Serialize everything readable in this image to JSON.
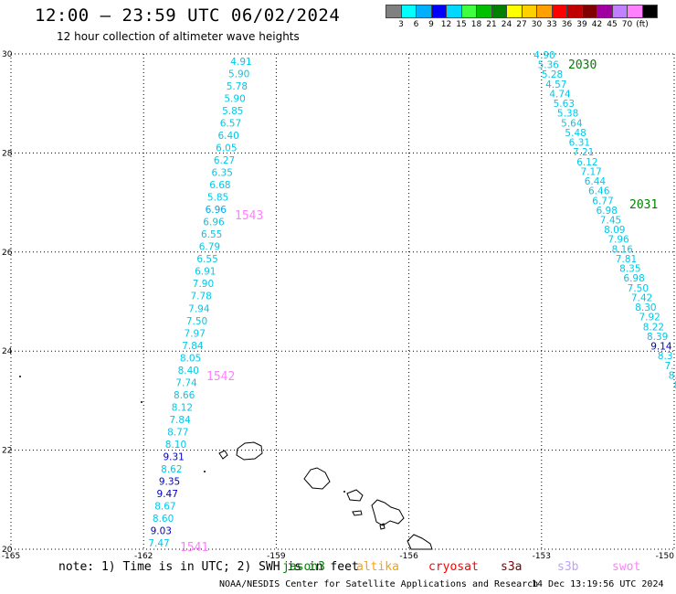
{
  "title": "12:00 — 23:59 UTC 06/02/2024",
  "subtitle": "12 hour collection of altimeter wave heights",
  "colorbar": {
    "colors": [
      "#808080",
      "#00ffff",
      "#00b0ff",
      "#0000ff",
      "#00d8ff",
      "#40ff40",
      "#00c000",
      "#008000",
      "#ffff00",
      "#ffd000",
      "#ffa000",
      "#ff0000",
      "#c00000",
      "#800000",
      "#a000a0",
      "#c080ff",
      "#ff80ff",
      "#000000"
    ],
    "labels": [
      "3",
      "6",
      "9",
      "12",
      "15",
      "18",
      "21",
      "24",
      "27",
      "30",
      "33",
      "36",
      "39",
      "42",
      "45",
      "70",
      "(ft)"
    ]
  },
  "axes": {
    "lon_ticks": [
      "-165",
      "-162",
      "-159",
      "-156",
      "-153",
      "-150"
    ],
    "lat_ticks": [
      "30",
      "28",
      "26",
      "24",
      "22",
      "20"
    ]
  },
  "passes": [
    {
      "label": "2030",
      "color": "#008000"
    },
    {
      "label": "2031",
      "color": "#008000"
    },
    {
      "label": "1543",
      "color": "#ff80ff"
    },
    {
      "label": "1542",
      "color": "#ff80ff"
    },
    {
      "label": "1541",
      "color": "#ff80ff"
    }
  ],
  "track_left": [
    "4.91",
    "5.90",
    "5.78",
    "5.90",
    "5.85",
    "6.57",
    "6.40",
    "6.05",
    "6.27",
    "6.35",
    "6.68",
    "5.85",
    "6.96",
    "6.96",
    "6.55",
    "6.79",
    "6.55",
    "6.91",
    "7.90",
    "7.78",
    "7.94",
    "7.50",
    "7.97",
    "7.84",
    "8.05",
    "8.40",
    "7.74",
    "8.66",
    "8.12",
    "7.84",
    "8.77",
    "8.10",
    "9.31",
    "8.62",
    "9.35",
    "9.47",
    "8.67",
    "8.60",
    "9.03",
    "7.47"
  ],
  "track_left_colors": [
    "c",
    "c",
    "c",
    "c",
    "c",
    "c",
    "c",
    "c",
    "c",
    "c",
    "c",
    "c",
    "b",
    "c",
    "c",
    "c",
    "c",
    "c",
    "c",
    "c",
    "c",
    "c",
    "c",
    "c",
    "c",
    "c",
    "c",
    "c",
    "c",
    "c",
    "c",
    "c",
    "d",
    "c",
    "d",
    "d",
    "c",
    "c",
    "d",
    "c"
  ],
  "track_right": [
    "4.90",
    "5.36",
    "5.28",
    "4.57",
    "4.74",
    "5.63",
    "5.38",
    "5.64",
    "5.48",
    "6.31",
    "7.21",
    "6.12",
    "7.17",
    "6.44",
    "6.46",
    "6.77",
    "6.98",
    "7.45",
    "8.09",
    "7.96",
    "8.16",
    "7.81",
    "8.35",
    "6.98",
    "7.50",
    "7.42",
    "8.30",
    "7.92",
    "8.22",
    "8.39",
    "9.14",
    "8.3",
    "7.",
    "8.",
    "8"
  ],
  "track_right_colors": [
    "c",
    "c",
    "c",
    "c",
    "c",
    "c",
    "c",
    "c",
    "c",
    "c",
    "c",
    "c",
    "c",
    "c",
    "c",
    "c",
    "c",
    "c",
    "c",
    "c",
    "c",
    "c",
    "c",
    "c",
    "c",
    "c",
    "c",
    "c",
    "c",
    "c",
    "d",
    "c",
    "c",
    "c",
    "c"
  ],
  "note": "note: 1) Time is in UTC; 2) SWH is in feet",
  "missions": [
    {
      "name": "jason3",
      "color": "#008000"
    },
    {
      "name": "altika",
      "color": "#ffa000"
    },
    {
      "name": "cryosat",
      "color": "#ff0000"
    },
    {
      "name": "s3a",
      "color": "#800000"
    },
    {
      "name": "s3b",
      "color": "#c0a0ff"
    },
    {
      "name": "swot",
      "color": "#ff80ff"
    }
  ],
  "footer_center": "NOAA/NESDIS Center for Satellite Applications and Research",
  "footer_right": "14 Dec 13:19:56 UTC 2024"
}
